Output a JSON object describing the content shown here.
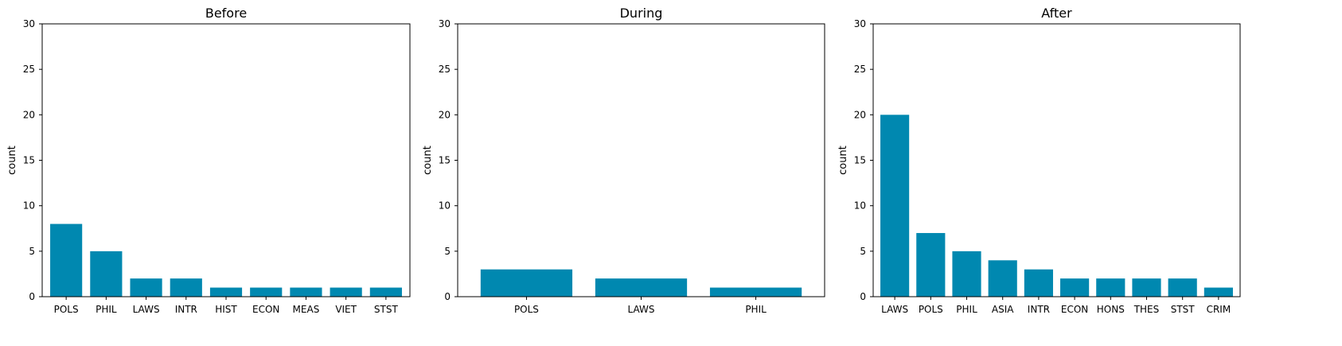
{
  "colors": {
    "bar": "#0088b0",
    "axis": "#000000",
    "background": "#ffffff"
  },
  "chart_data": [
    {
      "type": "bar",
      "title": "Before",
      "xlabel": "",
      "ylabel": "count",
      "ylim": [
        0,
        30
      ],
      "yticks": [
        0,
        5,
        10,
        15,
        20,
        25,
        30
      ],
      "grid": false,
      "categories": [
        "POLS",
        "PHIL",
        "LAWS",
        "INTR",
        "HIST",
        "ECON",
        "MEAS",
        "VIET",
        "STST"
      ],
      "values": [
        8,
        5,
        2,
        2,
        1,
        1,
        1,
        1,
        1
      ]
    },
    {
      "type": "bar",
      "title": "During",
      "xlabel": "",
      "ylabel": "count",
      "ylim": [
        0,
        30
      ],
      "yticks": [
        0,
        5,
        10,
        15,
        20,
        25,
        30
      ],
      "grid": false,
      "categories": [
        "POLS",
        "LAWS",
        "PHIL"
      ],
      "values": [
        3,
        2,
        1
      ]
    },
    {
      "type": "bar",
      "title": "After",
      "xlabel": "",
      "ylabel": "count",
      "ylim": [
        0,
        30
      ],
      "yticks": [
        0,
        5,
        10,
        15,
        20,
        25,
        30
      ],
      "grid": false,
      "categories": [
        "LAWS",
        "POLS",
        "PHIL",
        "ASIA",
        "INTR",
        "ECON",
        "HONS",
        "THES",
        "STST",
        "CRIM"
      ],
      "values": [
        20,
        7,
        5,
        4,
        3,
        2,
        2,
        2,
        2,
        1
      ]
    }
  ]
}
